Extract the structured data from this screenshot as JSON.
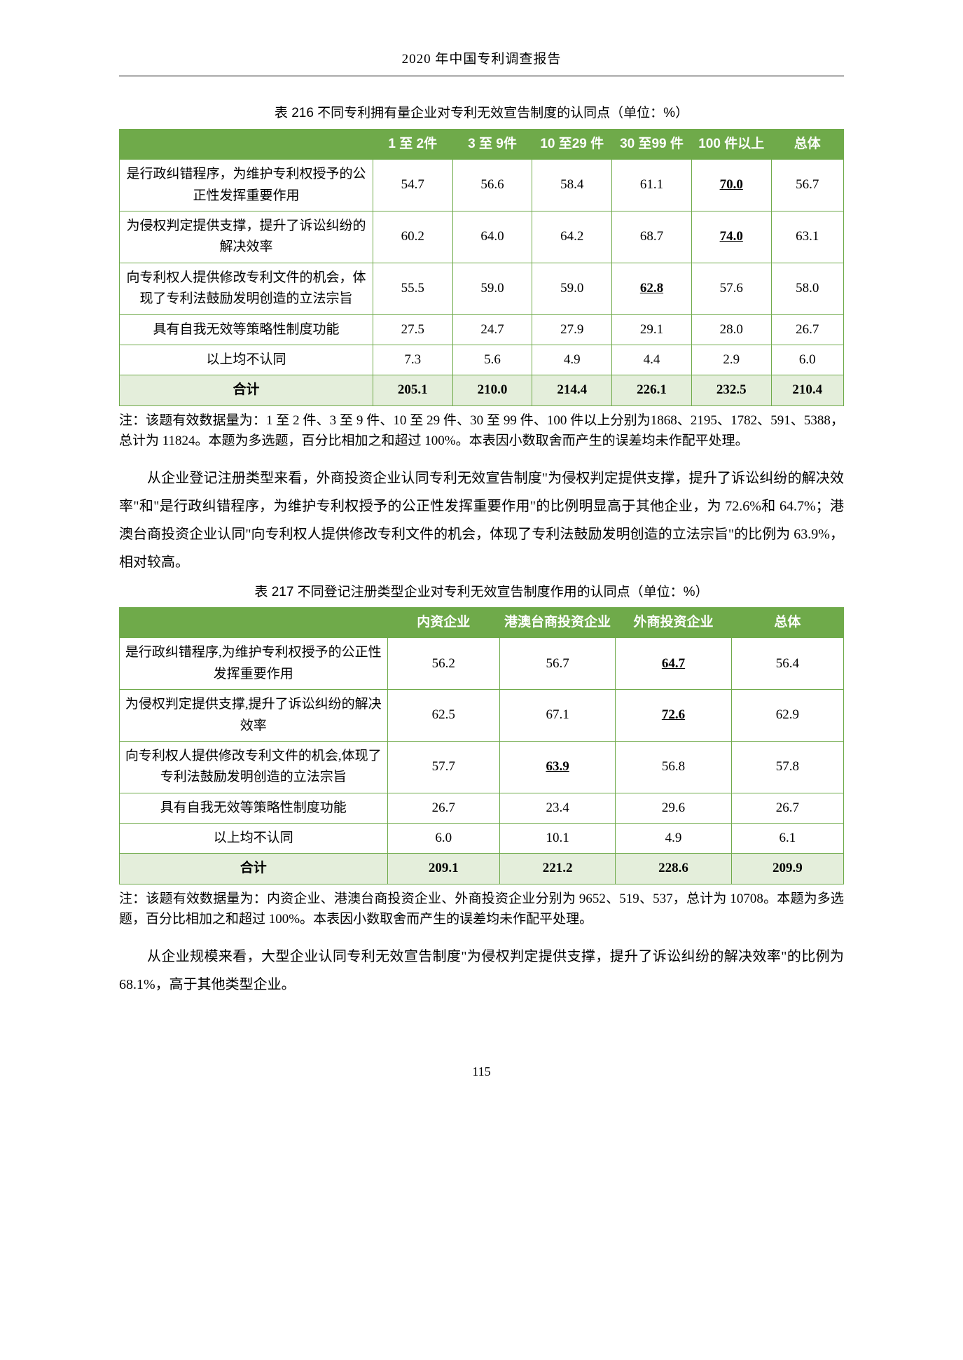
{
  "header": "2020 年中国专利调查报告",
  "table1": {
    "caption": "表 216  不同专利拥有量企业对专利无效宣告制度的认同点（单位：%）",
    "columns": [
      "",
      "1 至 2件",
      "3 至 9件",
      "10 至29 件",
      "30 至99 件",
      "100 件以上",
      "总体"
    ],
    "rows": [
      {
        "label": "是行政纠错程序，为维护专利权授予的公正性发挥重要作用",
        "v": [
          "54.7",
          "56.6",
          "58.4",
          "61.1",
          "70.0",
          "56.7"
        ],
        "hl": [
          4
        ]
      },
      {
        "label": "为侵权判定提供支撑，提升了诉讼纠纷的解决效率",
        "v": [
          "60.2",
          "64.0",
          "64.2",
          "68.7",
          "74.0",
          "63.1"
        ],
        "hl": [
          4
        ]
      },
      {
        "label": "向专利权人提供修改专利文件的机会，体现了专利法鼓励发明创造的立法宗旨",
        "v": [
          "55.5",
          "59.0",
          "59.0",
          "62.8",
          "57.6",
          "58.0"
        ],
        "hl": [
          3
        ]
      },
      {
        "label": "具有自我无效等策略性制度功能",
        "v": [
          "27.5",
          "24.7",
          "27.9",
          "29.1",
          "28.0",
          "26.7"
        ],
        "hl": []
      },
      {
        "label": "以上均不认同",
        "v": [
          "7.3",
          "5.6",
          "4.9",
          "4.4",
          "2.9",
          "6.0"
        ],
        "hl": []
      }
    ],
    "total": {
      "label": "合计",
      "v": [
        "205.1",
        "210.0",
        "214.4",
        "226.1",
        "232.5",
        "210.4"
      ]
    },
    "note": "注：该题有效数据量为：1 至 2 件、3 至 9 件、10 至 29 件、30 至 99 件、100 件以上分别为1868、2195、1782、591、5388，总计为 11824。本题为多选题，百分比相加之和超过 100%。本表因小数取舍而产生的误差均未作配平处理。"
  },
  "para1": "从企业登记注册类型来看，外商投资企业认同专利无效宣告制度\"为侵权判定提供支撑，提升了诉讼纠纷的解决效率\"和\"是行政纠错程序，为维护专利权授予的公正性发挥重要作用\"的比例明显高于其他企业，为 72.6%和 64.7%；港澳台商投资企业认同\"向专利权人提供修改专利文件的机会，体现了专利法鼓励发明创造的立法宗旨\"的比例为 63.9%，相对较高。",
  "table2": {
    "caption": "表 217  不同登记注册类型企业对专利无效宣告制度作用的认同点（单位：%）",
    "columns": [
      "",
      "内资企业",
      "港澳台商投资企业",
      "外商投资企业",
      "总体"
    ],
    "rows": [
      {
        "label": "是行政纠错程序,为维护专利权授予的公正性发挥重要作用",
        "v": [
          "56.2",
          "56.7",
          "64.7",
          "56.4"
        ],
        "hl": [
          2
        ]
      },
      {
        "label": "为侵权判定提供支撑,提升了诉讼纠纷的解决效率",
        "v": [
          "62.5",
          "67.1",
          "72.6",
          "62.9"
        ],
        "hl": [
          2
        ]
      },
      {
        "label": "向专利权人提供修改专利文件的机会,体现了专利法鼓励发明创造的立法宗旨",
        "v": [
          "57.7",
          "63.9",
          "56.8",
          "57.8"
        ],
        "hl": [
          1
        ]
      },
      {
        "label": "具有自我无效等策略性制度功能",
        "v": [
          "26.7",
          "23.4",
          "29.6",
          "26.7"
        ],
        "hl": []
      },
      {
        "label": "以上均不认同",
        "v": [
          "6.0",
          "10.1",
          "4.9",
          "6.1"
        ],
        "hl": []
      }
    ],
    "total": {
      "label": "合计",
      "v": [
        "209.1",
        "221.2",
        "228.6",
        "209.9"
      ]
    },
    "note": "注：该题有效数据量为：内资企业、港澳台商投资企业、外商投资企业分别为 9652、519、537，总计为 10708。本题为多选题，百分比相加之和超过 100%。本表因小数取舍而产生的误差均未作配平处理。"
  },
  "para2": "从企业规模来看，大型企业认同专利无效宣告制度\"为侵权判定提供支撑，提升了诉讼纠纷的解决效率\"的比例为 68.1%，高于其他类型企业。",
  "pageNum": "115"
}
